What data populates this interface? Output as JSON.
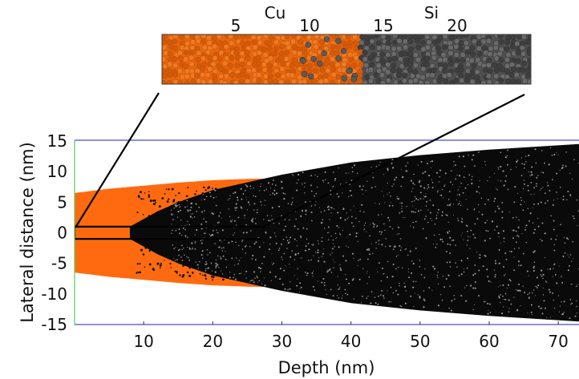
{
  "chart_data": {
    "type": "scatter",
    "title": "",
    "xlabel": "Depth (nm)",
    "ylabel": "Lateral distance (nm)",
    "xlim": [
      0,
      73
    ],
    "ylim": [
      -15,
      15
    ],
    "x_ticks": [
      10,
      20,
      30,
      40,
      50,
      60,
      70
    ],
    "y_ticks": [
      15,
      10,
      5,
      0,
      -5,
      -10,
      -15
    ],
    "grid": false,
    "series": [
      {
        "name": "",
        "color": "#ff6a10",
        "envelope": [
          [
            0,
            6.5
          ],
          [
            5,
            7.2
          ],
          [
            10,
            7.7
          ],
          [
            15,
            8.2
          ],
          [
            20,
            8.6
          ],
          [
            25,
            8.8
          ],
          [
            30,
            8.9
          ]
        ],
        "x_extent": [
          0,
          30
        ]
      },
      {
        "name": "",
        "color": "#000000",
        "envelope": [
          [
            8,
            1.0
          ],
          [
            12,
            3.5
          ],
          [
            15,
            5.0
          ],
          [
            20,
            7.0
          ],
          [
            30,
            9.5
          ],
          [
            40,
            11.5
          ],
          [
            50,
            12.7
          ],
          [
            60,
            13.6
          ],
          [
            73,
            14.5
          ]
        ],
        "x_extent": [
          8,
          73
        ]
      }
    ],
    "inset": {
      "labels": [
        "Cu",
        "Si"
      ],
      "tick_labels": [
        "5",
        "10",
        "15",
        "20"
      ],
      "tick_values": [
        5,
        10,
        15,
        20
      ],
      "range": [
        0,
        25
      ],
      "boundary": 13.5,
      "colors": {
        "cu": "#e8660e",
        "si": "#505050"
      },
      "zoom_box": {
        "x": [
          0,
          27
        ],
        "y": [
          -1,
          1
        ]
      }
    }
  }
}
